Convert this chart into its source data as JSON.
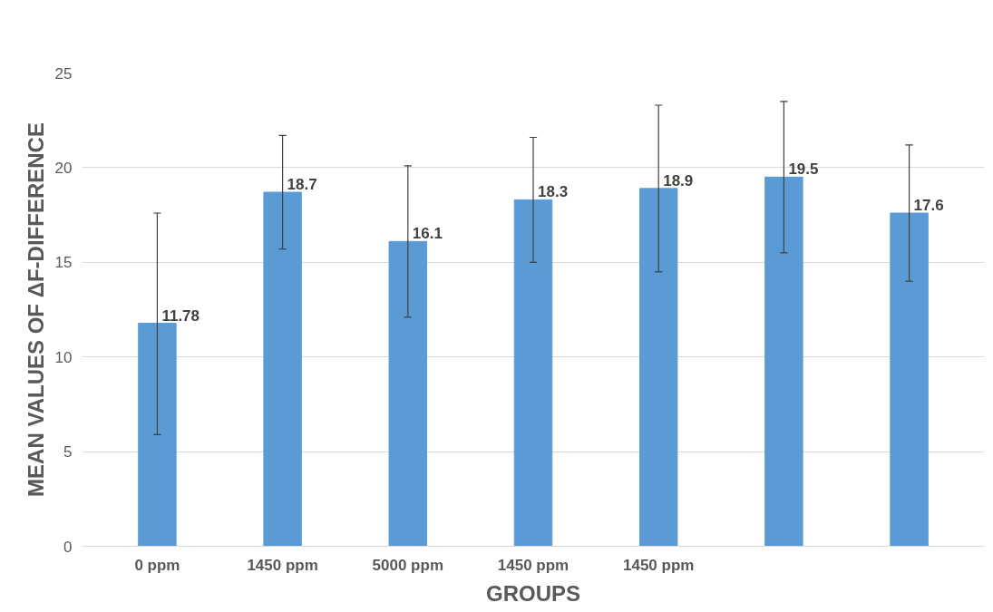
{
  "chart_data": {
    "type": "bar",
    "xlabel": "GROUPS",
    "ylabel": "MEAN VALUES OF ΔF-DIFFERENCE",
    "categories": [
      "0 ppm",
      "1450 ppm",
      "5000 ppm",
      "1450 ppm",
      "1450 ppm",
      null,
      null
    ],
    "values": [
      11.78,
      18.7,
      16.1,
      18.3,
      18.9,
      19.5,
      17.6
    ],
    "errors": [
      [
        5.9,
        17.6
      ],
      [
        15.7,
        21.7
      ],
      [
        12.1,
        20.1
      ],
      [
        15.0,
        21.6
      ],
      [
        14.5,
        23.3
      ],
      [
        15.5,
        23.5
      ],
      [
        14.0,
        21.2
      ]
    ],
    "color": "#5b9bd5",
    "data_labels": true,
    "ylim": [
      0,
      25
    ],
    "yticks": [
      0,
      5,
      10,
      15,
      20,
      25
    ],
    "grid": "y"
  }
}
